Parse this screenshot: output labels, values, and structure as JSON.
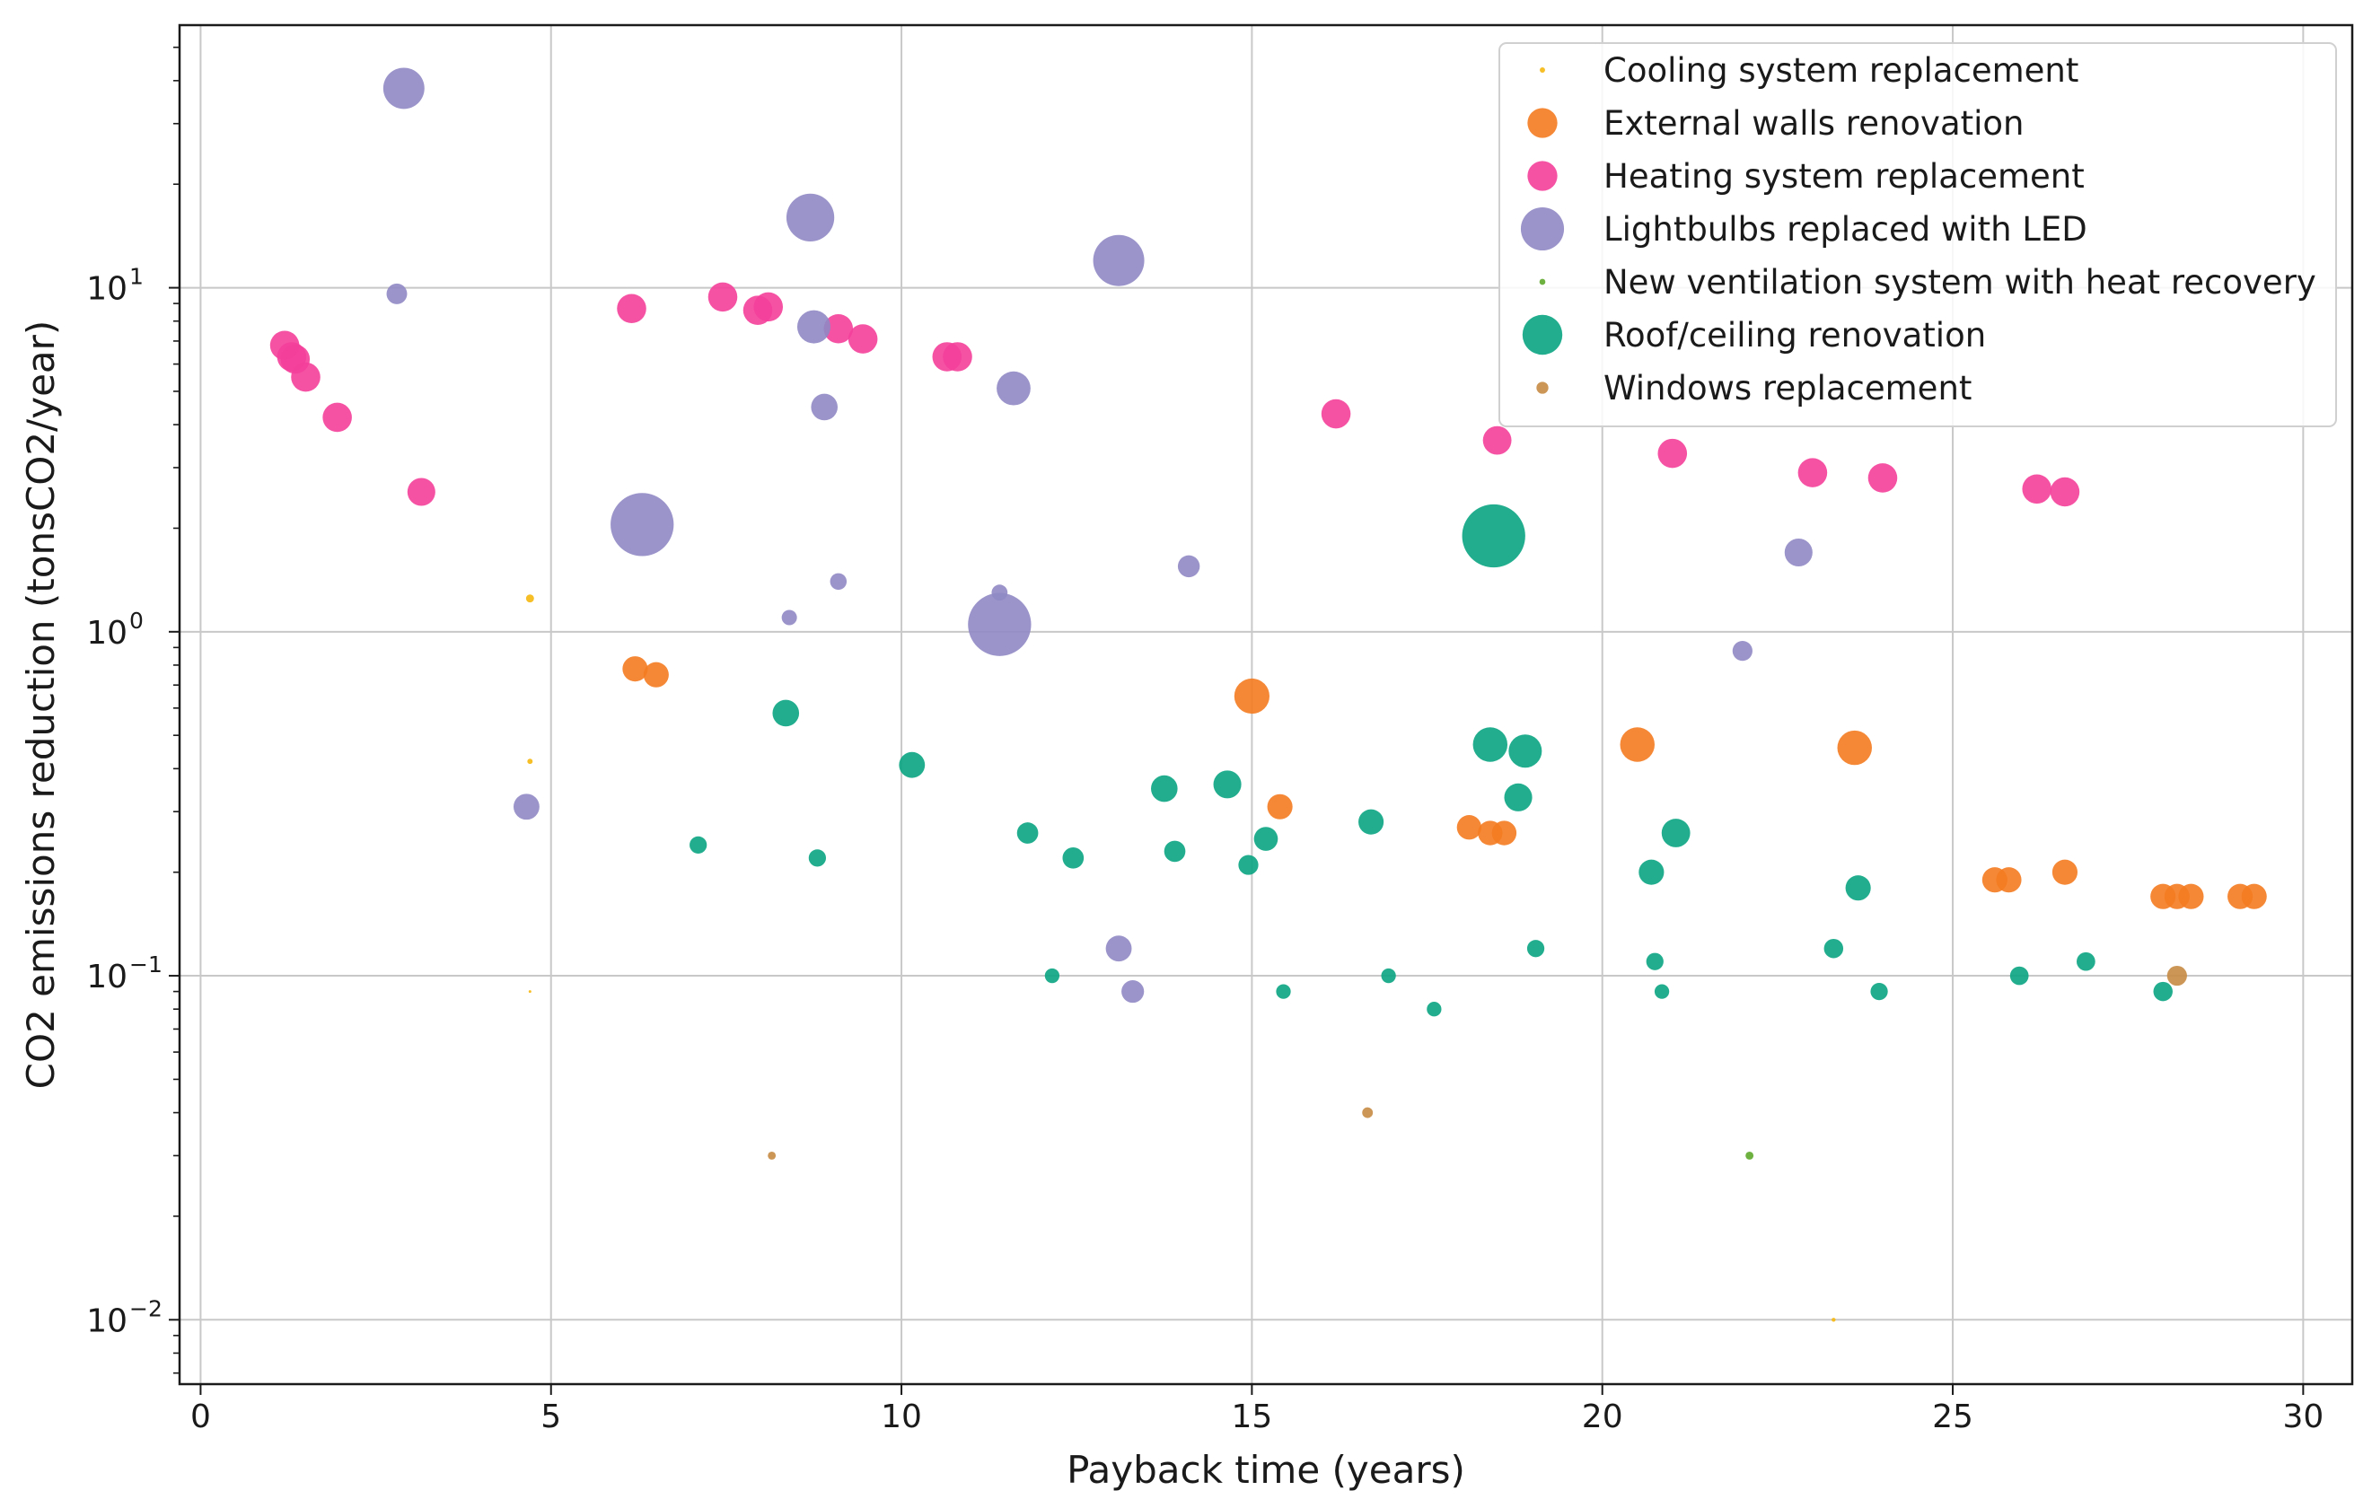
{
  "chart_data": {
    "type": "scatter",
    "title": "",
    "xlabel": "Payback time (years)",
    "ylabel": "CO2 emissions reduction (tonsCO2/year)",
    "xlim": [
      -0.3,
      30.7
    ],
    "ylim": [
      0.0065,
      58
    ],
    "yscale": "log",
    "grid": true,
    "legend_position": "top-right",
    "x_ticks": [
      {
        "value": 0,
        "label": "0"
      },
      {
        "value": 5,
        "label": "5"
      },
      {
        "value": 10,
        "label": "10"
      },
      {
        "value": 15,
        "label": "15"
      },
      {
        "value": 20,
        "label": "20"
      },
      {
        "value": 25,
        "label": "25"
      },
      {
        "value": 30,
        "label": "30"
      }
    ],
    "y_ticks": [
      {
        "value": 0.01,
        "base": "10",
        "exp": "−2"
      },
      {
        "value": 0.1,
        "base": "10",
        "exp": "−1"
      },
      {
        "value": 1,
        "base": "10",
        "exp": "0"
      },
      {
        "value": 10,
        "base": "10",
        "exp": "1"
      }
    ],
    "note": "marker size encodes a third quantity (relative scale s)",
    "series": [
      {
        "name": "Cooling system replacement",
        "color": "#f5b70f",
        "legend_s": 0.8,
        "points": [
          {
            "x": 4.7,
            "y": 1.25,
            "s": 1.2
          },
          {
            "x": 4.7,
            "y": 0.42,
            "s": 0.8
          },
          {
            "x": 4.7,
            "y": 0.09,
            "s": 0.4
          },
          {
            "x": 23.3,
            "y": 0.01,
            "s": 0.6
          }
        ]
      },
      {
        "name": "External walls renovation",
        "color": "#f47b20",
        "legend_s": 4.5,
        "points": [
          {
            "x": 6.2,
            "y": 0.78,
            "s": 3.8
          },
          {
            "x": 6.5,
            "y": 0.75,
            "s": 3.8
          },
          {
            "x": 15.0,
            "y": 0.65,
            "s": 5.3
          },
          {
            "x": 15.4,
            "y": 0.31,
            "s": 3.8
          },
          {
            "x": 18.1,
            "y": 0.27,
            "s": 3.7
          },
          {
            "x": 18.4,
            "y": 0.26,
            "s": 3.7
          },
          {
            "x": 18.6,
            "y": 0.26,
            "s": 3.7
          },
          {
            "x": 20.5,
            "y": 0.47,
            "s": 5.2
          },
          {
            "x": 23.6,
            "y": 0.46,
            "s": 5.2
          },
          {
            "x": 25.6,
            "y": 0.19,
            "s": 3.8
          },
          {
            "x": 25.8,
            "y": 0.19,
            "s": 3.8
          },
          {
            "x": 26.6,
            "y": 0.2,
            "s": 3.8
          },
          {
            "x": 28.0,
            "y": 0.17,
            "s": 3.8
          },
          {
            "x": 28.2,
            "y": 0.17,
            "s": 3.8
          },
          {
            "x": 28.4,
            "y": 0.17,
            "s": 3.8
          },
          {
            "x": 29.1,
            "y": 0.17,
            "s": 3.8
          },
          {
            "x": 29.3,
            "y": 0.17,
            "s": 3.8
          }
        ]
      },
      {
        "name": "Heating system replacement",
        "color": "#f43f9a",
        "legend_s": 4.5,
        "points": [
          {
            "x": 1.2,
            "y": 6.8,
            "s": 4.4
          },
          {
            "x": 1.3,
            "y": 6.3,
            "s": 4.4
          },
          {
            "x": 1.35,
            "y": 6.2,
            "s": 4.4
          },
          {
            "x": 1.5,
            "y": 5.5,
            "s": 4.4
          },
          {
            "x": 1.95,
            "y": 4.2,
            "s": 4.4
          },
          {
            "x": 3.15,
            "y": 2.55,
            "s": 4.2
          },
          {
            "x": 6.15,
            "y": 8.7,
            "s": 4.4
          },
          {
            "x": 7.45,
            "y": 9.4,
            "s": 4.4
          },
          {
            "x": 7.95,
            "y": 8.6,
            "s": 4.4
          },
          {
            "x": 8.1,
            "y": 8.8,
            "s": 4.4
          },
          {
            "x": 9.1,
            "y": 7.6,
            "s": 4.4
          },
          {
            "x": 9.45,
            "y": 7.1,
            "s": 4.4
          },
          {
            "x": 10.65,
            "y": 6.3,
            "s": 4.4
          },
          {
            "x": 10.8,
            "y": 6.3,
            "s": 4.4
          },
          {
            "x": 16.2,
            "y": 4.3,
            "s": 4.4
          },
          {
            "x": 18.5,
            "y": 3.6,
            "s": 4.3
          },
          {
            "x": 21.0,
            "y": 3.3,
            "s": 4.4
          },
          {
            "x": 23.0,
            "y": 2.9,
            "s": 4.4
          },
          {
            "x": 24.0,
            "y": 2.8,
            "s": 4.4
          },
          {
            "x": 26.2,
            "y": 2.6,
            "s": 4.4
          },
          {
            "x": 26.6,
            "y": 2.55,
            "s": 4.4
          }
        ]
      },
      {
        "name": "Lightbulbs replaced with LED",
        "color": "#8f88c4",
        "legend_s": 6.5,
        "points": [
          {
            "x": 2.9,
            "y": 38,
            "s": 6.2
          },
          {
            "x": 2.8,
            "y": 9.6,
            "s": 3.1
          },
          {
            "x": 8.7,
            "y": 16,
            "s": 7.2
          },
          {
            "x": 8.75,
            "y": 7.7,
            "s": 5.0
          },
          {
            "x": 8.9,
            "y": 4.5,
            "s": 4.0
          },
          {
            "x": 13.1,
            "y": 12,
            "s": 7.7
          },
          {
            "x": 11.6,
            "y": 5.1,
            "s": 5.1
          },
          {
            "x": 6.3,
            "y": 2.05,
            "s": 9.5
          },
          {
            "x": 11.4,
            "y": 1.05,
            "s": 9.5
          },
          {
            "x": 9.1,
            "y": 1.4,
            "s": 2.5
          },
          {
            "x": 8.4,
            "y": 1.1,
            "s": 2.3
          },
          {
            "x": 11.4,
            "y": 1.3,
            "s": 2.4
          },
          {
            "x": 14.1,
            "y": 1.55,
            "s": 3.3
          },
          {
            "x": 4.65,
            "y": 0.31,
            "s": 3.9
          },
          {
            "x": 13.1,
            "y": 0.12,
            "s": 3.9
          },
          {
            "x": 13.3,
            "y": 0.09,
            "s": 3.4
          },
          {
            "x": 22.0,
            "y": 0.88,
            "s": 3.0
          },
          {
            "x": 22.8,
            "y": 1.7,
            "s": 4.2
          }
        ]
      },
      {
        "name": "New ventilation system with heat recovery",
        "color": "#5ea82c",
        "legend_s": 0.9,
        "points": [
          {
            "x": 22.1,
            "y": 0.03,
            "s": 1.2
          }
        ]
      },
      {
        "name": "Roof/ceiling renovation",
        "color": "#0aa582",
        "legend_s": 6.0,
        "points": [
          {
            "x": 18.45,
            "y": 1.9,
            "s": 9.5
          },
          {
            "x": 8.35,
            "y": 0.58,
            "s": 4.0
          },
          {
            "x": 10.15,
            "y": 0.41,
            "s": 3.9
          },
          {
            "x": 7.1,
            "y": 0.24,
            "s": 2.6
          },
          {
            "x": 8.8,
            "y": 0.22,
            "s": 2.6
          },
          {
            "x": 11.8,
            "y": 0.26,
            "s": 3.2
          },
          {
            "x": 12.45,
            "y": 0.22,
            "s": 3.2
          },
          {
            "x": 12.15,
            "y": 0.1,
            "s": 2.2
          },
          {
            "x": 13.75,
            "y": 0.35,
            "s": 4.0
          },
          {
            "x": 13.9,
            "y": 0.23,
            "s": 3.2
          },
          {
            "x": 14.65,
            "y": 0.36,
            "s": 4.2
          },
          {
            "x": 15.2,
            "y": 0.25,
            "s": 3.6
          },
          {
            "x": 14.95,
            "y": 0.21,
            "s": 3.0
          },
          {
            "x": 15.45,
            "y": 0.09,
            "s": 2.2
          },
          {
            "x": 16.7,
            "y": 0.28,
            "s": 3.8
          },
          {
            "x": 16.95,
            "y": 0.1,
            "s": 2.2
          },
          {
            "x": 17.6,
            "y": 0.08,
            "s": 2.2
          },
          {
            "x": 18.4,
            "y": 0.47,
            "s": 5.2
          },
          {
            "x": 18.9,
            "y": 0.45,
            "s": 5.0
          },
          {
            "x": 18.8,
            "y": 0.33,
            "s": 4.2
          },
          {
            "x": 19.05,
            "y": 0.12,
            "s": 2.6
          },
          {
            "x": 20.7,
            "y": 0.2,
            "s": 3.8
          },
          {
            "x": 20.75,
            "y": 0.11,
            "s": 2.6
          },
          {
            "x": 20.85,
            "y": 0.09,
            "s": 2.2
          },
          {
            "x": 21.05,
            "y": 0.26,
            "s": 4.3
          },
          {
            "x": 23.3,
            "y": 0.12,
            "s": 2.9
          },
          {
            "x": 23.65,
            "y": 0.18,
            "s": 3.8
          },
          {
            "x": 23.95,
            "y": 0.09,
            "s": 2.6
          },
          {
            "x": 25.95,
            "y": 0.1,
            "s": 2.8
          },
          {
            "x": 26.9,
            "y": 0.11,
            "s": 2.8
          },
          {
            "x": 28.0,
            "y": 0.09,
            "s": 2.9
          }
        ]
      },
      {
        "name": "Windows replacement",
        "color": "#c68b44",
        "legend_s": 1.8,
        "points": [
          {
            "x": 28.2,
            "y": 0.1,
            "s": 3.0
          },
          {
            "x": 16.65,
            "y": 0.04,
            "s": 1.6
          },
          {
            "x": 8.15,
            "y": 0.03,
            "s": 1.2
          }
        ]
      }
    ]
  }
}
